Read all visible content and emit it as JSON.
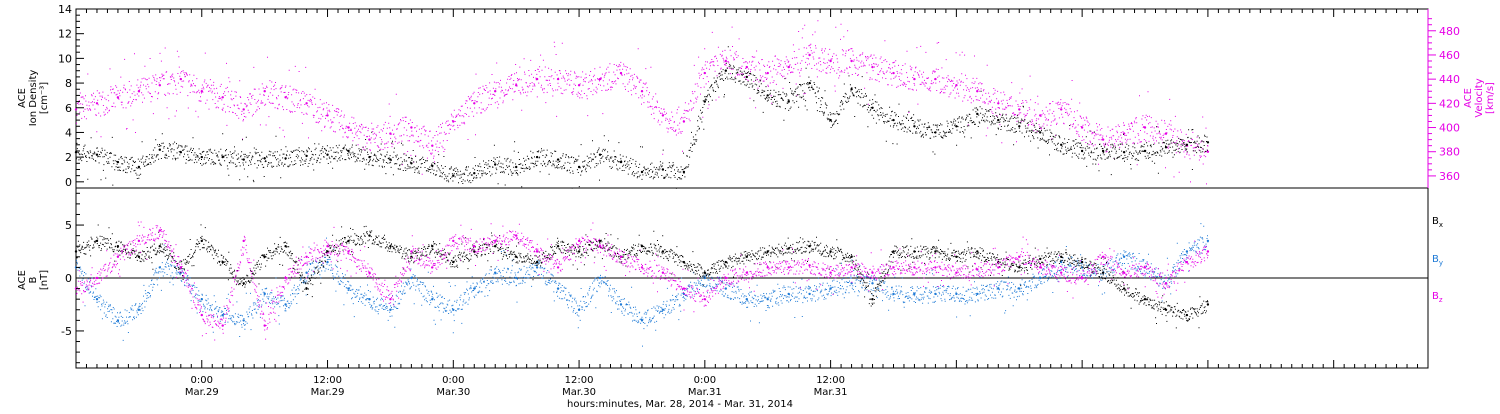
{
  "colors": {
    "black": "#000000",
    "magenta": "#e600e6",
    "blue": "#1e7ad6"
  },
  "chart_data": [
    {
      "type": "scatter",
      "panel": "top",
      "left_axis": {
        "label_lines": [
          "ACE",
          "Ion Density",
          "[cm⁻³]"
        ],
        "range": [
          -0.5,
          14
        ],
        "ticks": [
          0,
          2,
          4,
          6,
          8,
          10,
          12,
          14
        ]
      },
      "right_axis": {
        "label_lines": [
          "ACE",
          "Velocity",
          "[km/s]"
        ],
        "range": [
          350,
          498
        ],
        "ticks": [
          360,
          380,
          400,
          420,
          440,
          460,
          480
        ],
        "color": "#e600e6"
      },
      "series": [
        {
          "key": "density",
          "axis": "left",
          "color": "#000000",
          "x": [
            0,
            2,
            4,
            6,
            8,
            10,
            12,
            14,
            16,
            18,
            20,
            22,
            24,
            26,
            28,
            30,
            32,
            34,
            36,
            38,
            40,
            42,
            44,
            46,
            48,
            50,
            52,
            54,
            56,
            58,
            60,
            62,
            64,
            66,
            68,
            70,
            72,
            74,
            76,
            78,
            80,
            82,
            84,
            86,
            88,
            90,
            92,
            94,
            96,
            98,
            100,
            102,
            104,
            106,
            108
          ],
          "y": [
            2.4,
            2.2,
            1.6,
            1.2,
            2.6,
            2.4,
            2.0,
            2.0,
            1.8,
            1.9,
            1.9,
            2.1,
            2.2,
            2.5,
            2.0,
            1.8,
            1.5,
            1.3,
            0.5,
            0.7,
            1.4,
            1.2,
            2.0,
            1.8,
            1.2,
            2.2,
            1.6,
            0.8,
            1.0,
            0.8,
            6.5,
            9.0,
            8.5,
            7.0,
            6.5,
            8.0,
            5.0,
            7.5,
            6.0,
            5.0,
            4.5,
            4.0,
            4.5,
            5.5,
            5.0,
            4.5,
            4.0,
            3.0,
            2.5,
            2.5,
            2.4,
            2.5,
            2.8,
            3.0,
            3.2
          ]
        },
        {
          "key": "velocity",
          "axis": "right",
          "color": "#e600e6",
          "x": [
            0,
            2,
            4,
            6,
            8,
            10,
            12,
            14,
            16,
            18,
            20,
            22,
            24,
            26,
            28,
            30,
            32,
            34,
            36,
            38,
            40,
            42,
            44,
            46,
            48,
            50,
            52,
            54,
            56,
            58,
            60,
            62,
            64,
            66,
            68,
            70,
            72,
            74,
            76,
            78,
            80,
            82,
            84,
            86,
            88,
            90,
            92,
            94,
            96,
            98,
            100,
            102,
            104,
            106,
            108
          ],
          "y": [
            415,
            420,
            425,
            430,
            435,
            440,
            430,
            425,
            415,
            430,
            425,
            420,
            410,
            400,
            390,
            395,
            400,
            385,
            405,
            420,
            430,
            435,
            440,
            440,
            435,
            440,
            445,
            430,
            410,
            405,
            445,
            455,
            450,
            445,
            450,
            460,
            455,
            455,
            450,
            445,
            440,
            440,
            435,
            430,
            420,
            415,
            410,
            415,
            400,
            390,
            395,
            400,
            395,
            385,
            380
          ]
        }
      ]
    },
    {
      "type": "scatter",
      "panel": "bottom",
      "left_axis": {
        "label_lines": [
          "ACE",
          "B",
          "[nT]"
        ],
        "range": [
          -8.5,
          8.5
        ],
        "ticks": [
          -5,
          0,
          5
        ]
      },
      "series": [
        {
          "name": "Bx",
          "label_main": "B",
          "label_sub": "x",
          "color": "#000000",
          "x": [
            0,
            2,
            4,
            6,
            8,
            10,
            12,
            14,
            16,
            18,
            20,
            22,
            24,
            26,
            28,
            30,
            32,
            34,
            36,
            38,
            40,
            42,
            44,
            46,
            48,
            50,
            52,
            54,
            56,
            58,
            60,
            62,
            64,
            66,
            68,
            70,
            72,
            74,
            76,
            78,
            80,
            82,
            84,
            86,
            88,
            90,
            92,
            94,
            96,
            98,
            100,
            102,
            104,
            106,
            108
          ],
          "y": [
            2.5,
            3.5,
            3.0,
            2.0,
            3.0,
            1.0,
            3.5,
            1.5,
            -0.5,
            2.0,
            3.0,
            -1.0,
            2.5,
            3.5,
            4.0,
            3.0,
            2.0,
            3.0,
            1.5,
            2.5,
            3.0,
            2.0,
            1.5,
            3.0,
            2.5,
            3.5,
            2.0,
            3.0,
            2.5,
            1.5,
            0.5,
            1.5,
            2.0,
            2.5,
            2.8,
            3.0,
            2.5,
            2.0,
            -2.0,
            2.5,
            2.5,
            2.5,
            2.0,
            2.5,
            1.5,
            1.0,
            1.8,
            2.0,
            1.5,
            0.5,
            -1.0,
            -2.0,
            -3.0,
            -3.5,
            -2.5
          ]
        },
        {
          "name": "By",
          "label_main": "B",
          "label_sub": "y",
          "color": "#1e7ad6",
          "x": [
            0,
            2,
            4,
            6,
            8,
            10,
            12,
            14,
            16,
            18,
            20,
            22,
            24,
            26,
            28,
            30,
            32,
            34,
            36,
            38,
            40,
            42,
            44,
            46,
            48,
            50,
            52,
            54,
            56,
            58,
            60,
            62,
            64,
            66,
            68,
            70,
            72,
            74,
            76,
            78,
            80,
            82,
            84,
            86,
            88,
            90,
            92,
            94,
            96,
            98,
            100,
            102,
            104,
            106,
            108
          ],
          "y": [
            1.0,
            -2.0,
            -4.0,
            -3.0,
            1.0,
            0.5,
            -2.0,
            -3.5,
            -4.0,
            -1.5,
            -2.5,
            0.5,
            1.5,
            -1.0,
            -2.0,
            -3.0,
            0.0,
            -2.0,
            -3.0,
            -1.0,
            0.5,
            0.0,
            1.0,
            -1.0,
            -3.0,
            0.0,
            -2.5,
            -4.0,
            -3.0,
            -1.5,
            0.0,
            -1.0,
            -2.0,
            -2.0,
            -1.5,
            -1.5,
            -1.0,
            -0.5,
            -0.5,
            -1.5,
            -1.5,
            -1.5,
            -1.5,
            -1.5,
            -1.0,
            -1.0,
            0.0,
            1.5,
            1.0,
            0.5,
            2.0,
            1.0,
            -0.5,
            2.5,
            3.5
          ]
        },
        {
          "name": "Bz",
          "label_main": "B",
          "label_sub": "z",
          "color": "#e600e6",
          "x": [
            0,
            2,
            4,
            6,
            8,
            10,
            12,
            14,
            16,
            18,
            20,
            22,
            24,
            26,
            28,
            30,
            32,
            34,
            36,
            38,
            40,
            42,
            44,
            46,
            48,
            50,
            52,
            54,
            56,
            58,
            60,
            62,
            64,
            66,
            68,
            70,
            72,
            74,
            76,
            78,
            80,
            82,
            84,
            86,
            88,
            90,
            92,
            94,
            96,
            98,
            100,
            102,
            104,
            106,
            108
          ],
          "y": [
            -1.0,
            0.0,
            2.0,
            3.5,
            4.5,
            1.0,
            -3.5,
            -4.5,
            3.5,
            -4.5,
            0.0,
            2.0,
            3.0,
            2.5,
            0.5,
            -2.0,
            2.5,
            1.0,
            3.5,
            3.0,
            3.5,
            4.0,
            2.5,
            1.0,
            3.5,
            3.0,
            2.0,
            1.0,
            0.5,
            -1.0,
            -2.0,
            0.0,
            0.5,
            1.0,
            1.0,
            1.2,
            0.5,
            1.0,
            0.5,
            1.0,
            1.0,
            1.0,
            0.5,
            0.8,
            1.0,
            2.0,
            1.0,
            0.5,
            0.0,
            2.0,
            0.5,
            1.0,
            -0.5,
            1.5,
            2.5
          ]
        }
      ]
    }
  ],
  "x_axis": {
    "range_hours": [
      0,
      129
    ],
    "ticks": [
      {
        "hours": 12,
        "time": "0:00",
        "date": "Mar.29"
      },
      {
        "hours": 24,
        "time": "12:00",
        "date": "Mar.29"
      },
      {
        "hours": 36,
        "time": "0:00",
        "date": "Mar.30"
      },
      {
        "hours": 48,
        "time": "12:00",
        "date": "Mar.30"
      },
      {
        "hours": 60,
        "time": "0:00",
        "date": "Mar.31"
      },
      {
        "hours": 72,
        "time": "12:00",
        "date": "Mar.31"
      }
    ],
    "title": "hours:minutes, Mar. 28, 2014 - Mar. 31, 2014"
  }
}
